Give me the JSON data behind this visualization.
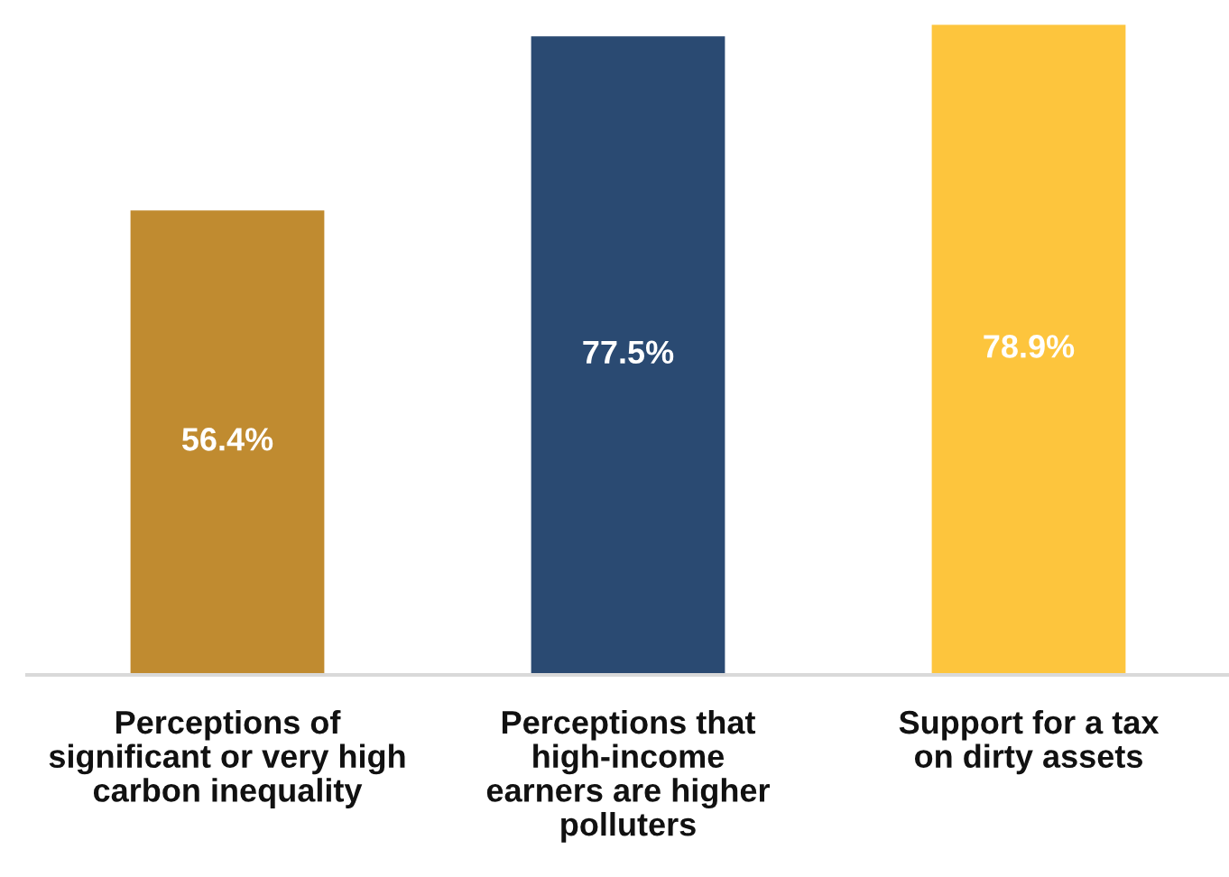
{
  "chart_data": {
    "type": "bar",
    "categories": [
      "Perceptions of\nsignificant or very high\ncarbon inequality",
      "Perceptions that\nhigh-income\nearners are higher\npolluters",
      "Support for a tax\non dirty assets"
    ],
    "values": [
      56.4,
      77.5,
      78.9
    ],
    "colors": [
      "#c08b30",
      "#2a4a72",
      "#fdc53d"
    ],
    "value_labels": [
      "56.4%",
      "77.5%",
      "78.9%"
    ],
    "tick_labels": "x"
  }
}
